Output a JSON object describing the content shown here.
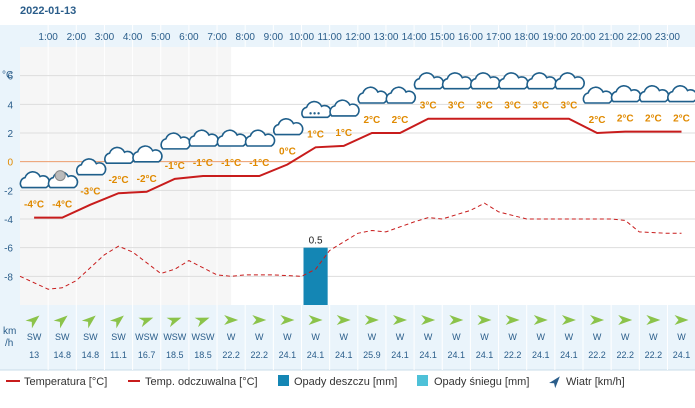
{
  "date": "2022-01-13",
  "chart_data": {
    "type": "line",
    "hours": [
      "1:00",
      "2:00",
      "3:00",
      "4:00",
      "5:00",
      "6:00",
      "7:00",
      "8:00",
      "9:00",
      "10:00",
      "11:00",
      "12:00",
      "13:00",
      "14:00",
      "15:00",
      "16:00",
      "17:00",
      "18:00",
      "19:00",
      "20:00",
      "21:00",
      "22:00",
      "23:00"
    ],
    "y_unit": "°C",
    "y_ticks": [
      "6",
      "4",
      "2",
      "0",
      "-2",
      "-4",
      "-6",
      "-8"
    ],
    "ylim": [
      -10,
      8
    ],
    "temperature_series": {
      "name": "Temperatura [°C]",
      "x": [
        0.5,
        1.5,
        2.5,
        3.5,
        4.5,
        5.5,
        6.5,
        7.5,
        8.5,
        9.5,
        10.5,
        11.5,
        12.5,
        13.5,
        14.5,
        15.5,
        16.5,
        17.5,
        18.5,
        19.5,
        20.5,
        21.5,
        22.5,
        23.5
      ],
      "values": [
        -3.9,
        -3.9,
        -3,
        -2.2,
        -2.1,
        -1.2,
        -1,
        -1,
        -1,
        -0.2,
        1,
        1.1,
        2,
        2,
        3,
        3,
        3,
        3,
        3,
        3,
        2,
        2.1,
        2.1,
        2.1
      ]
    },
    "feels_like_series": {
      "name": "Temp. odczuwalna [°C]",
      "x": [
        0,
        1,
        1.5,
        2,
        3,
        3.5,
        4,
        5,
        5.5,
        6,
        7,
        7.5,
        8,
        9,
        10,
        10.5,
        11,
        12,
        12.5,
        13,
        14,
        14.5,
        15,
        16,
        16.5,
        17,
        18,
        19,
        20,
        21,
        21.5,
        22,
        23,
        23.5
      ],
      "values": [
        -8,
        -8.9,
        -8.8,
        -8.3,
        -6.5,
        -5.9,
        -6.3,
        -7.8,
        -7.5,
        -6.9,
        -7.9,
        -8,
        -7.9,
        -7.9,
        -8,
        -7.5,
        -6.2,
        -5,
        -4.8,
        -4.9,
        -4.2,
        -3.9,
        -4,
        -3.4,
        -2.9,
        -3.5,
        -4,
        -4,
        -4,
        -4,
        -4.1,
        -4.9,
        -5,
        -5
      ]
    },
    "rain": {
      "hour_index": 10,
      "value": 0.5,
      "label": "0.5"
    },
    "temp_labels": [
      "-4°C",
      "-4°C",
      "-3°C",
      "-2°C",
      "-2°C",
      "-1°C",
      "-1°C",
      "-1°C",
      "-1°C",
      "0°C",
      "1°C",
      "1°C",
      "2°C",
      "2°C",
      "3°C",
      "3°C",
      "3°C",
      "3°C",
      "3°C",
      "3°C",
      "2°C",
      "2°C",
      "2°C",
      "2°C"
    ],
    "wind_label_line1": "km",
    "wind_label_line2": "/h",
    "wind_dirs": [
      "SW",
      "SW",
      "SW",
      "SW",
      "WSW",
      "WSW",
      "WSW",
      "W",
      "W",
      "W",
      "W",
      "W",
      "W",
      "W",
      "W",
      "W",
      "W",
      "W",
      "W",
      "W",
      "W",
      "W",
      "W",
      "W"
    ],
    "wind_speeds": [
      "13",
      "14.8",
      "14.8",
      "11.1",
      "16.7",
      "18.5",
      "18.5",
      "22.2",
      "22.2",
      "24.1",
      "24.1",
      "24.1",
      "25.9",
      "24.1",
      "24.1",
      "24.1",
      "24.1",
      "22.2",
      "24.1",
      "24.1",
      "22.2",
      "22.2",
      "22.2",
      "24.1"
    ],
    "legend": [
      "Temperatura [°C]",
      "Temp. odczuwalna [°C]",
      "Opady deszczu [mm]",
      "Opady śniegu [mm]",
      "Wiatr [km/h]"
    ],
    "colors": {
      "temperature": "#c81c1c",
      "feels_like": "#c81c1c",
      "rain": "#1486b4",
      "snow": "#4ec1d8",
      "wind": "#8bc34a",
      "label": "#e08a00",
      "axis": "#2a5d8a",
      "header_bg": "#eaf4fb"
    }
  }
}
